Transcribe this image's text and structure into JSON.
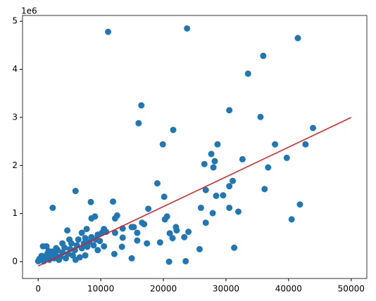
{
  "chart_data": {
    "type": "scatter",
    "offset_label": "1e6",
    "x": [
      11170,
      23780,
      41480,
      35950,
      33520,
      16480,
      30530,
      35510,
      16040,
      21570,
      43900,
      19910,
      28650,
      37830,
      42700,
      27650,
      32630,
      28200,
      26550,
      39710,
      36730,
      27990,
      31080,
      19030,
      30530,
      29540,
      26770,
      36170,
      28430,
      20130,
      5970,
      8410,
      11950,
      17590,
      26000,
      30530,
      2320,
      41810,
      31970,
      27880,
      12610,
      12280,
      9070,
      8520,
      20580,
      20240,
      40490,
      16590,
      16920,
      26770,
      15270,
      14940,
      22010,
      13500,
      4650,
      24000,
      21020,
      15820,
      12280,
      10840,
      22120,
      23340,
      21460,
      15820,
      13500,
      17370,
      19470,
      13380,
      10510,
      9510,
      12170,
      25780,
      31310,
      14940,
      20910,
      23560,
      770,
      1330,
      0,
      220,
      550,
      880,
      1110,
      1440,
      1770,
      1990,
      2210,
      2540,
      2770,
      3100,
      3320,
      3540,
      3870,
      4200,
      4420,
      4760,
      5090,
      5310,
      5530,
      5860,
      6190,
      6420,
      6640,
      6970,
      7300,
      7520,
      7850,
      8190,
      8520,
      8850,
      9180,
      9510,
      9850,
      10180,
      10510,
      6970,
      7740,
      4980,
      3870,
      2880,
      1660,
      7520,
      5970
    ],
    "y": [
      4.78,
      4.85,
      4.65,
      4.28,
      3.91,
      3.25,
      3.15,
      3.01,
      2.88,
      2.74,
      2.78,
      2.44,
      2.44,
      2.44,
      2.44,
      2.24,
      2.13,
      2.09,
      2.03,
      2.16,
      1.96,
      1.96,
      1.68,
      1.63,
      1.57,
      1.38,
      1.49,
      1.51,
      1.37,
      1.35,
      1.47,
      1.24,
      1.25,
      1.1,
      1.12,
      1.12,
      1.12,
      1.19,
      1.04,
      1.01,
      0.96,
      0.9,
      0.94,
      0.9,
      0.94,
      0.88,
      0.88,
      0.81,
      0.78,
      0.81,
      0.72,
      0.72,
      0.72,
      0.69,
      0.65,
      0.62,
      0.59,
      0.6,
      0.6,
      0.62,
      0.65,
      0.51,
      0.49,
      0.44,
      0.5,
      0.38,
      0.4,
      0.31,
      0.32,
      0.24,
      0.16,
      0.26,
      0.29,
      0.07,
      0.0,
      0.01,
      0.32,
      0.32,
      0.01,
      0.06,
      0.12,
      0.01,
      0.09,
      0.16,
      0.04,
      0.13,
      0.21,
      0.07,
      0.15,
      0.24,
      0.04,
      0.1,
      0.19,
      0.29,
      0.07,
      0.16,
      0.26,
      0.38,
      0.13,
      0.24,
      0.34,
      0.46,
      0.09,
      0.28,
      0.38,
      0.49,
      0.31,
      0.41,
      0.51,
      0.34,
      0.46,
      0.56,
      0.43,
      0.6,
      0.68,
      0.6,
      0.68,
      0.46,
      0.38,
      0.28,
      0.22,
      0.13,
      0.04
    ],
    "color": "#1f77b4",
    "fit_line": {
      "x": [
        0,
        50000
      ],
      "y": [
        -0.09,
        3.0
      ],
      "color": "#e41a1c"
    },
    "xlim": [
      -2500,
      52500
    ],
    "ylim": [
      -0.35,
      5.12
    ],
    "xticks": [
      0,
      10000,
      20000,
      30000,
      40000,
      50000
    ],
    "yticks": [
      0,
      1,
      2,
      3,
      4,
      5
    ]
  }
}
